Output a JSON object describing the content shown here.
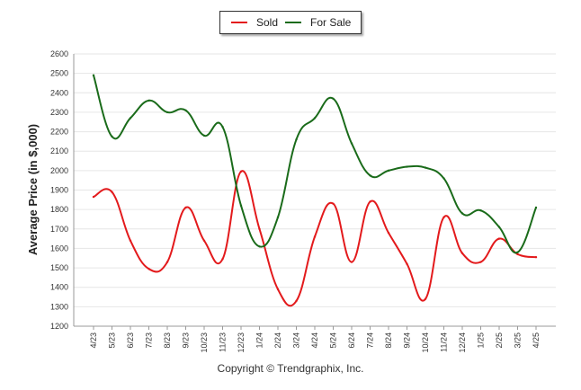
{
  "legend": {
    "sold_label": "Sold",
    "for_sale_label": "For Sale"
  },
  "footer": "Copyright © Trendgraphix, Inc.",
  "chart_data": {
    "type": "line",
    "ylabel": "Average Price (in $,000)",
    "ylim": [
      1200,
      2600
    ],
    "yticks": [
      1200,
      1300,
      1400,
      1500,
      1600,
      1700,
      1800,
      1900,
      2000,
      2100,
      2200,
      2300,
      2400,
      2500,
      2600
    ],
    "categories": [
      "4/23",
      "5/23",
      "6/23",
      "7/23",
      "8/23",
      "9/23",
      "10/23",
      "11/23",
      "12/23",
      "1/24",
      "2/24",
      "3/24",
      "4/24",
      "5/24",
      "6/24",
      "7/24",
      "8/24",
      "9/24",
      "10/24",
      "11/24",
      "12/24",
      "1/25",
      "2/25",
      "3/25",
      "4/25"
    ],
    "series": [
      {
        "name": "Sold",
        "color": "#e31a1c",
        "values": [
          1865,
          1890,
          1640,
          1495,
          1530,
          1810,
          1640,
          1545,
          1995,
          1700,
          1390,
          1330,
          1660,
          1830,
          1530,
          1840,
          1680,
          1520,
          1340,
          1760,
          1575,
          1530,
          1650,
          1570,
          1555
        ]
      },
      {
        "name": "For Sale",
        "color": "#1a6b1a",
        "values": [
          2490,
          2175,
          2270,
          2360,
          2300,
          2310,
          2180,
          2225,
          1820,
          1610,
          1760,
          2160,
          2270,
          2370,
          2140,
          1975,
          2000,
          2020,
          2015,
          1960,
          1780,
          1795,
          1710,
          1580,
          1810
        ]
      }
    ],
    "grid": true,
    "legend_position": "top-center"
  }
}
